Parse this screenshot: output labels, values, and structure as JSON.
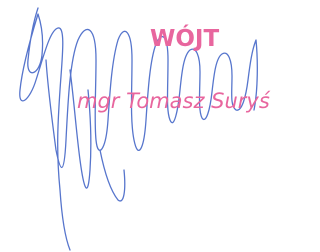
{
  "stamp": {
    "title": "WÓJT",
    "name": "mgr Tomasz Suryś"
  }
}
